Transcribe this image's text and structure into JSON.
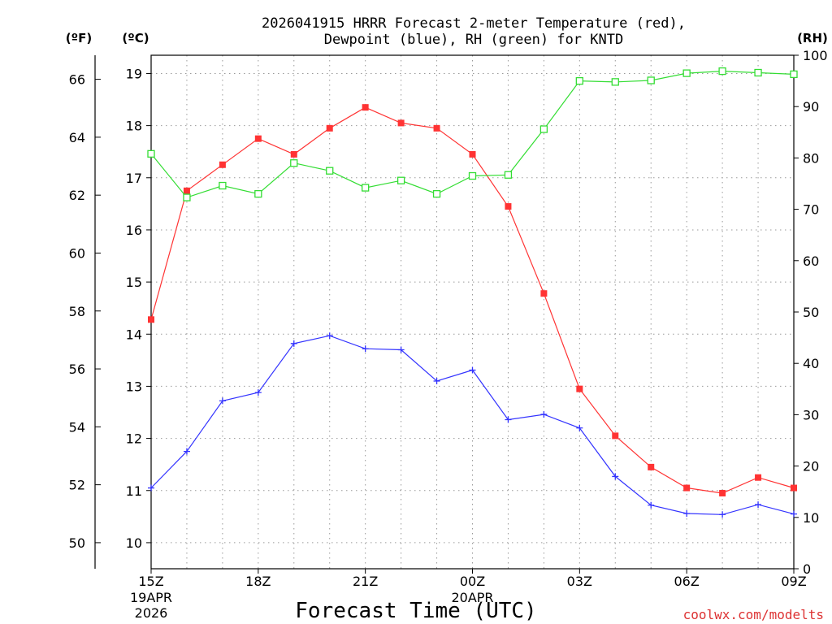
{
  "chart_data": {
    "type": "line",
    "title_line1": "2026041915 HRRR Forecast 2-meter Temperature (red),",
    "title_line2": "Dewpoint (blue), RH (green) for KNTD",
    "units": {
      "fahrenheit": "(ºF)",
      "celsius": "(ºC)",
      "rh": "(RH)"
    },
    "xlabel": "Forecast Time (UTC)",
    "credit": "coolwx.com/modelts",
    "x": [
      "15Z",
      "16Z",
      "17Z",
      "18Z",
      "19Z",
      "20Z",
      "21Z",
      "22Z",
      "23Z",
      "00Z",
      "01Z",
      "02Z",
      "03Z",
      "04Z",
      "05Z",
      "06Z",
      "07Z",
      "08Z",
      "09Z"
    ],
    "x_ticks": [
      {
        "label": "15Z",
        "index": 0,
        "sub1": "19APR",
        "sub2": "2026"
      },
      {
        "label": "18Z",
        "index": 3
      },
      {
        "label": "21Z",
        "index": 6
      },
      {
        "label": "00Z",
        "index": 9,
        "sub1": "20APR"
      },
      {
        "label": "03Z",
        "index": 12
      },
      {
        "label": "06Z",
        "index": 15
      },
      {
        "label": "09Z",
        "index": 18
      }
    ],
    "celsius_ticks": [
      10,
      11,
      12,
      13,
      14,
      15,
      16,
      17,
      18,
      19
    ],
    "fahrenheit_ticks": [
      50,
      52,
      54,
      56,
      58,
      60,
      62,
      64,
      66
    ],
    "rh_ticks": [
      0,
      10,
      20,
      30,
      40,
      50,
      60,
      70,
      80,
      90,
      100
    ],
    "ylim_celsius": [
      9.5,
      19.35
    ],
    "ylim_rh": [
      0,
      100
    ],
    "grid": true,
    "series": [
      {
        "id": "temperature",
        "axis": "celsius",
        "color": "#ff3333",
        "marker": "filled-square",
        "values": [
          14.28,
          16.75,
          17.25,
          17.75,
          17.45,
          17.95,
          18.35,
          18.05,
          17.95,
          17.45,
          16.45,
          14.78,
          12.95,
          12.05,
          11.45,
          11.05,
          10.95,
          11.25,
          11.05
        ]
      },
      {
        "id": "dewpoint",
        "axis": "celsius",
        "color": "#3333ff",
        "marker": "plus",
        "values": [
          11.05,
          11.75,
          12.72,
          12.88,
          13.82,
          13.97,
          13.72,
          13.7,
          13.1,
          13.31,
          12.36,
          12.46,
          12.2,
          11.27,
          10.72,
          10.56,
          10.54,
          10.73,
          10.55
        ]
      },
      {
        "id": "rh",
        "axis": "rh",
        "color": "#33dd33",
        "marker": "open-square",
        "values": [
          80.8,
          72.3,
          74.6,
          73.0,
          79.0,
          77.5,
          74.2,
          75.6,
          73.0,
          76.5,
          76.7,
          85.6,
          95.0,
          94.8,
          95.1,
          96.5,
          96.9,
          96.6,
          96.3
        ]
      }
    ]
  }
}
